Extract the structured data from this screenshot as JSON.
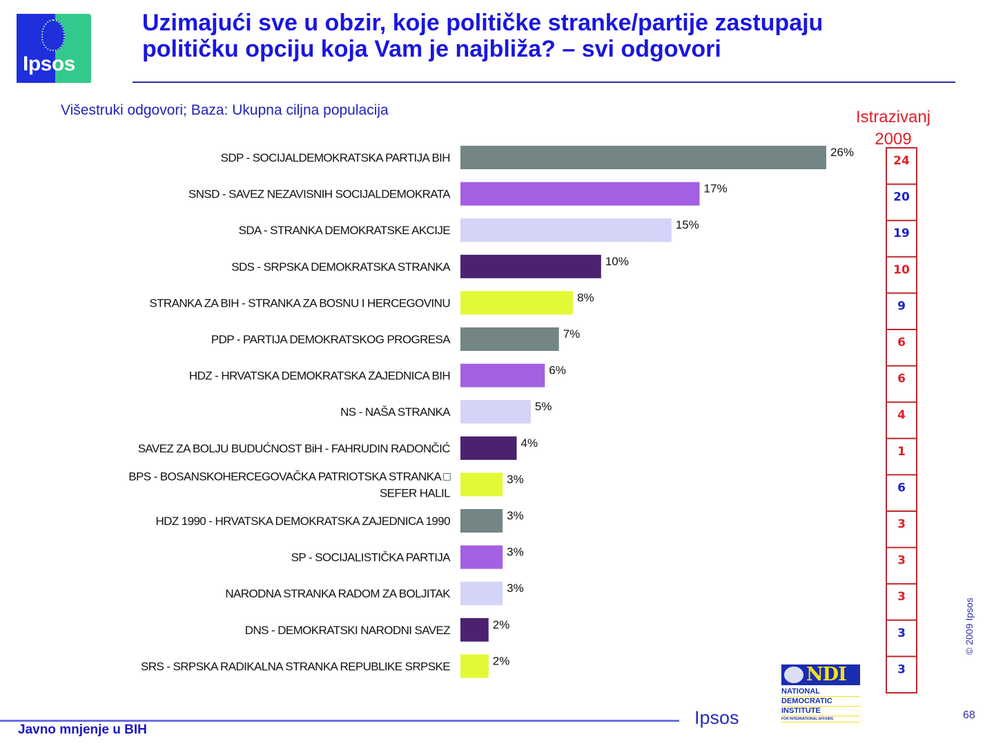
{
  "header": {
    "title_line1": "Uzimajući sve u obzir, koje političke stranke/partije zastupaju",
    "title_line2": "političku opciju koja Vam je najbliža? – svi odgovori",
    "subtitle": "Višestruki odgovori; Baza: Ukupna ciljna populacija",
    "logo_text": "Ipsos"
  },
  "comparison": {
    "heading_line1": "Istrazivanj",
    "heading_line2": "2009"
  },
  "footer": {
    "left_text": "Javno mnjenje u BIH",
    "brand": "Ipsos",
    "page_number": "68",
    "copyright": "© 2009 Ipsos",
    "ndi_mark": "NDI",
    "ndi_line1": "NATIONAL",
    "ndi_line2": "DEMOCRATIC",
    "ndi_line3": "INSTITUTE",
    "ndi_line4": "FOR INTERNATIONAL AFFAIRS"
  },
  "colors": {
    "title": "#1a16e0",
    "gray": "#748586",
    "violet": "#a460e3",
    "lavender": "#d3d4f8",
    "dark_purple": "#4b226f",
    "lime": "#e2f935",
    "prev_red": "#e0202a",
    "prev_blue": "#1c22c8",
    "box_border": "#c0282c"
  },
  "chart_data": {
    "type": "bar",
    "orientation": "horizontal",
    "title": "Uzimajući sve u obzir, koje političke stranke/partije zastupaju političku opciju koja Vam je najbliža? – svi odgovori",
    "subtitle": "Višestruki odgovori; Baza: Ukupna ciljna populacija",
    "xlabel": "",
    "ylabel": "",
    "xlim": [
      0,
      26
    ],
    "grid": false,
    "unit": "%",
    "categories": [
      [
        "SDP - SOCIJALDEMOKRATSKA PARTIJA BIH"
      ],
      [
        "SNSD - SAVEZ NEZAVISNIH SOCIJALDEMOKRATA"
      ],
      [
        "SDA - STRANKA DEMOKRATSKE AKCIJE"
      ],
      [
        "SDS - SRPSKA DEMOKRATSKA STRANKA"
      ],
      [
        "STRANKA ZA BIH - STRANKA ZA BOSNU I HERCEGOVINU"
      ],
      [
        "PDP - PARTIJA DEMOKRATSKOG PROGRESA"
      ],
      [
        "HDZ - HRVATSKA DEMOKRATSKA ZAJEDNICA BIH"
      ],
      [
        "NS - NAŠA STRANKA"
      ],
      [
        "SAVEZ ZA BOLJU BUDUĆNOST BiH - FAHRUDIN RADONČIĆ"
      ],
      [
        "BPS - BOSANSKOHERCEGOVAČKA PATRIOTSKA STRANKA □",
        "SEFER HALIL"
      ],
      [
        "HDZ 1990 - HRVATSKA DEMOKRATSKA ZAJEDNICA 1990"
      ],
      [
        "SP - SOCIJALISTIČKA PARTIJA"
      ],
      [
        "NARODNA STRANKA RADOM ZA BOLJITAK"
      ],
      [
        "DNS - DEMOKRATSKI NARODNI SAVEZ"
      ],
      [
        "SRS - SRPSKA RADIKALNA STRANKA REPUBLIKE SRPSKE"
      ]
    ],
    "values": [
      26,
      17,
      15,
      10,
      8,
      7,
      6,
      5,
      4,
      3,
      3,
      3,
      3,
      2,
      2
    ],
    "value_labels": [
      "26%",
      "17%",
      "15%",
      "10%",
      "8%",
      "7%",
      "6%",
      "5%",
      "4%",
      "3%",
      "3%",
      "3%",
      "3%",
      "2%",
      "2%"
    ],
    "bar_colors": [
      "gray",
      "violet",
      "lavender",
      "dark_purple",
      "lime",
      "gray",
      "violet",
      "lavender",
      "dark_purple",
      "lime",
      "gray",
      "violet",
      "lavender",
      "dark_purple",
      "lime"
    ],
    "comparison_series": {
      "name": "Istrazivanj 2009",
      "values": [
        24,
        20,
        19,
        10,
        9,
        6,
        6,
        4,
        1,
        6,
        3,
        3,
        3,
        3,
        3
      ],
      "value_colors": [
        "prev_red",
        "prev_blue",
        "prev_blue",
        "prev_red",
        "prev_blue",
        "prev_red",
        "prev_red",
        "prev_red",
        "prev_red",
        "prev_blue",
        "prev_red",
        "prev_red",
        "prev_red",
        "prev_blue",
        "prev_blue"
      ]
    }
  }
}
